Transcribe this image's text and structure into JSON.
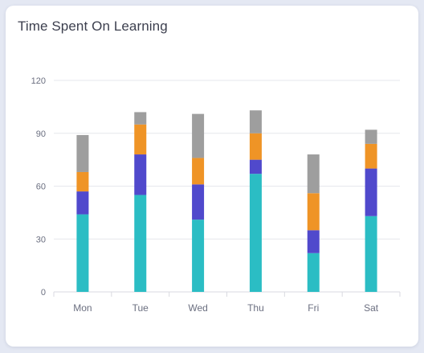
{
  "card": {
    "title": "Time Spent On Learning"
  },
  "chart_data": {
    "type": "bar",
    "stacked": true,
    "title": "Time Spent On Learning",
    "categories": [
      "Mon",
      "Tue",
      "Wed",
      "Thu",
      "Fri",
      "Sat"
    ],
    "series": [
      {
        "color": "#2bbdc4",
        "values": [
          44,
          55,
          41,
          67,
          22,
          43
        ]
      },
      {
        "color": "#5049cc",
        "values": [
          13,
          23,
          20,
          8,
          13,
          27
        ]
      },
      {
        "color": "#ef9426",
        "values": [
          11,
          17,
          15,
          15,
          21,
          14
        ]
      },
      {
        "color": "#9e9e9e",
        "values": [
          21,
          7,
          25,
          13,
          22,
          8
        ]
      }
    ],
    "yticks": [
      0,
      30,
      60,
      90,
      120
    ],
    "ylim": [
      0,
      120
    ],
    "grid": true,
    "legend": "none"
  }
}
